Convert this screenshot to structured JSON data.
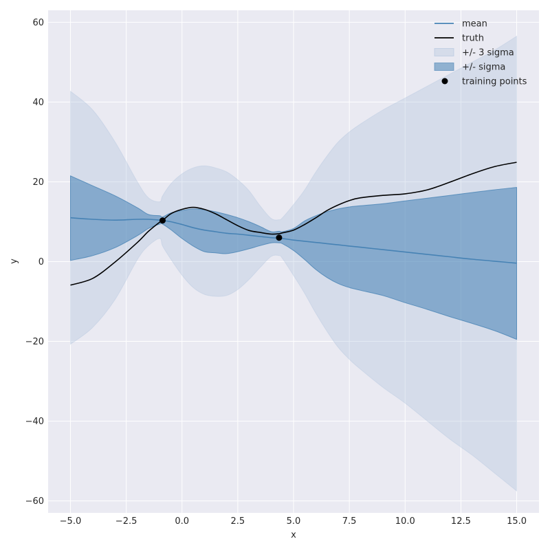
{
  "chart_data": {
    "type": "line",
    "title": "",
    "xlabel": "x",
    "ylabel": "y",
    "xlim": [
      -6.0,
      16.0
    ],
    "ylim": [
      -63,
      63
    ],
    "grid": true,
    "legend_position": "top-right",
    "xticks": [
      -5.0,
      -2.5,
      0.0,
      2.5,
      5.0,
      7.5,
      10.0,
      12.5,
      15.0
    ],
    "xtick_labels": [
      "−5.0",
      "−2.5",
      "0.0",
      "2.5",
      "5.0",
      "7.5",
      "10.0",
      "12.5",
      "15.0"
    ],
    "yticks": [
      -60,
      -40,
      -20,
      0,
      20,
      40,
      60
    ],
    "ytick_labels": [
      "−60",
      "−40",
      "−20",
      "0",
      "20",
      "40",
      "60"
    ],
    "x": [
      -5,
      -4,
      -3,
      -2,
      -1.5,
      -1,
      -0.87,
      -0.5,
      0,
      0.5,
      1,
      1.5,
      2,
      2.5,
      3,
      3.5,
      4,
      4.35,
      4.5,
      5,
      5.5,
      6,
      6.5,
      7,
      7.5,
      8,
      9,
      10,
      11,
      12,
      13,
      14,
      15
    ],
    "series": [
      {
        "name": "mean",
        "color": "#4682b4",
        "values": [
          11.0,
          10.6,
          10.4,
          10.6,
          10.6,
          10.4,
          10.3,
          10.0,
          9.3,
          8.5,
          7.9,
          7.5,
          7.1,
          6.9,
          6.6,
          6.3,
          6.0,
          5.9,
          5.8,
          5.4,
          5.1,
          4.8,
          4.5,
          4.2,
          3.9,
          3.6,
          3.0,
          2.4,
          1.8,
          1.2,
          0.6,
          0.1,
          -0.4
        ]
      },
      {
        "name": "truth",
        "color": "#000000",
        "values": [
          -5.9,
          -4.2,
          -0.1,
          4.8,
          7.6,
          9.9,
          10.3,
          12.0,
          13.1,
          13.6,
          13.1,
          12.0,
          10.5,
          9.0,
          7.8,
          7.3,
          6.9,
          7.0,
          7.2,
          7.9,
          9.3,
          11.0,
          12.8,
          14.2,
          15.3,
          16.0,
          16.6,
          17.0,
          18.0,
          19.9,
          22.0,
          23.8,
          24.9
        ]
      }
    ],
    "bands": [
      {
        "name": "+/- 3 sigma",
        "color": "#b0c4de",
        "upper": [
          42.7,
          38.0,
          30.0,
          20.0,
          16.0,
          15.0,
          16.5,
          19.5,
          22.0,
          23.5,
          24.0,
          23.5,
          22.5,
          20.5,
          17.8,
          14.0,
          10.8,
          10.5,
          11.0,
          14.3,
          18.0,
          22.5,
          26.5,
          30.0,
          32.5,
          34.5,
          38.0,
          41.0,
          44.0,
          47.0,
          50.0,
          53.0,
          56.5
        ],
        "lower": [
          -20.7,
          -16.5,
          -9.5,
          0.5,
          4.0,
          5.8,
          3.9,
          0.6,
          -3.4,
          -6.5,
          -8.2,
          -8.7,
          -8.5,
          -7.0,
          -4.5,
          -1.5,
          1.3,
          1.5,
          0.8,
          -3.5,
          -8.0,
          -13.0,
          -17.5,
          -21.5,
          -24.5,
          -27.0,
          -31.5,
          -35.5,
          -40.0,
          -44.5,
          -48.5,
          -53.0,
          -57.5
        ]
      },
      {
        "name": "+/- sigma",
        "color": "#4682b4",
        "upper": [
          21.5,
          19.0,
          16.5,
          13.5,
          11.8,
          11.5,
          11.2,
          12.2,
          12.8,
          13.2,
          13.0,
          12.5,
          11.8,
          11.0,
          10.0,
          8.8,
          7.5,
          7.6,
          7.5,
          8.3,
          10.2,
          11.5,
          12.5,
          13.2,
          13.7,
          14.0,
          14.5,
          15.2,
          15.9,
          16.6,
          17.3,
          18.0,
          18.6
        ],
        "lower": [
          0.3,
          1.5,
          3.5,
          6.5,
          8.3,
          9.4,
          9.4,
          8.0,
          5.8,
          3.9,
          2.5,
          2.2,
          2.0,
          2.5,
          3.2,
          4.0,
          4.7,
          4.7,
          4.5,
          2.8,
          0.5,
          -2.0,
          -4.0,
          -5.5,
          -6.5,
          -7.2,
          -8.5,
          -10.3,
          -12.0,
          -13.8,
          -15.5,
          -17.3,
          -19.5
        ]
      }
    ],
    "training_points": {
      "name": "training points",
      "color": "#000000",
      "x": [
        -0.87,
        4.35
      ],
      "y": [
        10.3,
        6.0
      ]
    },
    "legend": [
      "mean",
      "truth",
      "+/- 3 sigma",
      "+/- sigma",
      "training points"
    ]
  }
}
